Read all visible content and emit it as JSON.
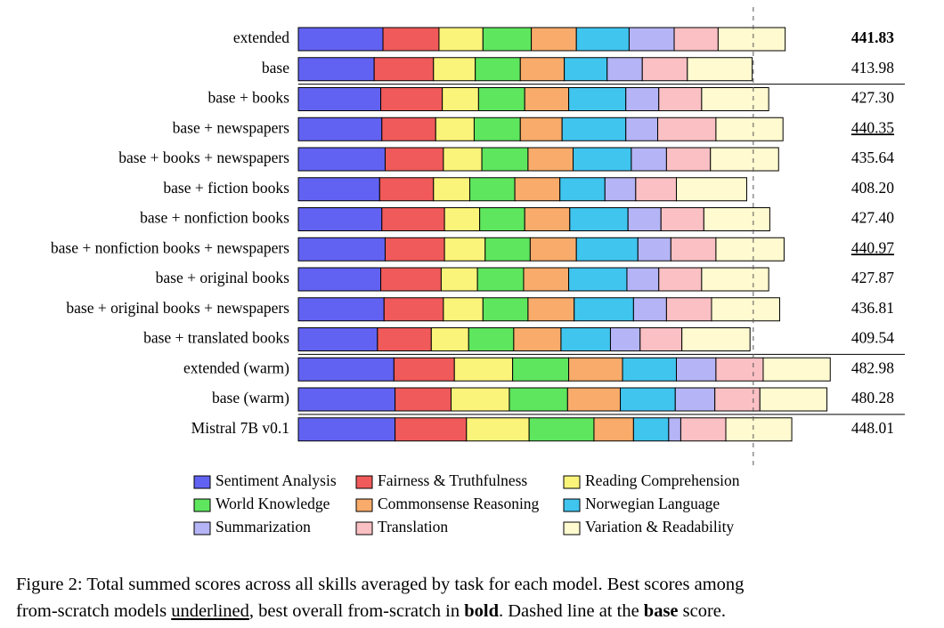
{
  "chart_data": {
    "type": "stacked-barh",
    "categories": [
      "extended",
      "base",
      "base + books",
      "base + newspapers",
      "base + books + newspapers",
      "base + fiction books",
      "base + nonfiction books",
      "base + nonfiction books + newspapers",
      "base + original books",
      "base + original books + newspapers",
      "base + translated books",
      "extended (warm)",
      "base (warm)",
      "Mistral 7B v0.1"
    ],
    "totals": [
      441.83,
      413.98,
      427.3,
      440.35,
      435.64,
      408.2,
      427.4,
      440.97,
      427.87,
      436.81,
      409.54,
      482.98,
      480.28,
      448.01
    ],
    "total_labels": [
      "441.83",
      "413.98",
      "427.30",
      "440.35",
      "435.64",
      "408.20",
      "427.40",
      "440.97",
      "427.87",
      "436.81",
      "409.54",
      "482.98",
      "480.28",
      "448.01"
    ],
    "bold": [
      0
    ],
    "underlined": [
      3,
      7
    ],
    "reference_line": {
      "total_index": 1,
      "style": "dashed"
    },
    "separators_after": [
      1,
      10,
      12
    ],
    "xlim": [
      0,
      500
    ],
    "legend": "bottom",
    "series": [
      {
        "name": "Sentiment Analysis",
        "color": "#6262f2",
        "values": [
          77,
          69,
          75,
          76,
          79,
          74,
          76,
          79,
          75,
          78,
          72,
          87,
          88,
          88
        ]
      },
      {
        "name": "Fairness & Truthfulness",
        "color": "#f05a5a",
        "values": [
          51,
          54,
          56,
          49,
          53,
          49,
          57,
          54,
          55,
          54,
          49,
          55,
          51,
          65
        ]
      },
      {
        "name": "Reading Comprehension",
        "color": "#fbf47a",
        "values": [
          40,
          38,
          33,
          35,
          35,
          33,
          32,
          37,
          33,
          36,
          34,
          53,
          53,
          57
        ]
      },
      {
        "name": "World Knowledge",
        "color": "#5ee65e",
        "values": [
          44,
          41,
          42,
          42,
          42,
          41,
          41,
          41,
          42,
          41,
          41,
          51,
          53,
          59
        ]
      },
      {
        "name": "Commonsense Reasoning",
        "color": "#f8ab6a",
        "values": [
          41,
          40,
          40,
          38,
          41,
          41,
          41,
          42,
          41,
          42,
          43,
          49,
          48,
          36
        ]
      },
      {
        "name": "Norwegian Language",
        "color": "#40c5ef",
        "values": [
          48,
          39,
          52,
          58,
          53,
          41,
          53,
          56,
          53,
          54,
          45,
          49,
          50,
          32
        ]
      },
      {
        "name": "Summarization",
        "color": "#b4b4f6",
        "values": [
          41,
          32,
          30,
          29,
          32,
          28,
          30,
          30,
          29,
          30,
          27,
          36,
          36,
          11
        ]
      },
      {
        "name": "Translation",
        "color": "#fbc0c4",
        "values": [
          40,
          41,
          39,
          53,
          40,
          37,
          39,
          41,
          39,
          41,
          38,
          43,
          41,
          41
        ]
      },
      {
        "name": "Variation & Readability",
        "color": "#fffad0",
        "values": [
          61,
          59,
          61,
          61,
          62,
          64,
          60,
          62,
          61,
          62,
          62,
          61,
          61,
          60
        ]
      }
    ]
  },
  "caption": {
    "lines": [
      [
        {
          "text": "Figure 2: Total summed scores across all skills averaged by task for each model. Best scores among"
        }
      ],
      [
        {
          "text": "from-scratch models "
        },
        {
          "text": "underlined",
          "style": "underline"
        },
        {
          "text": ", best overall from-scratch in "
        },
        {
          "text": "bold",
          "style": "bold"
        },
        {
          "text": ". Dashed line at the "
        },
        {
          "text": "base",
          "style": "bold"
        },
        {
          "text": " score."
        }
      ]
    ]
  }
}
